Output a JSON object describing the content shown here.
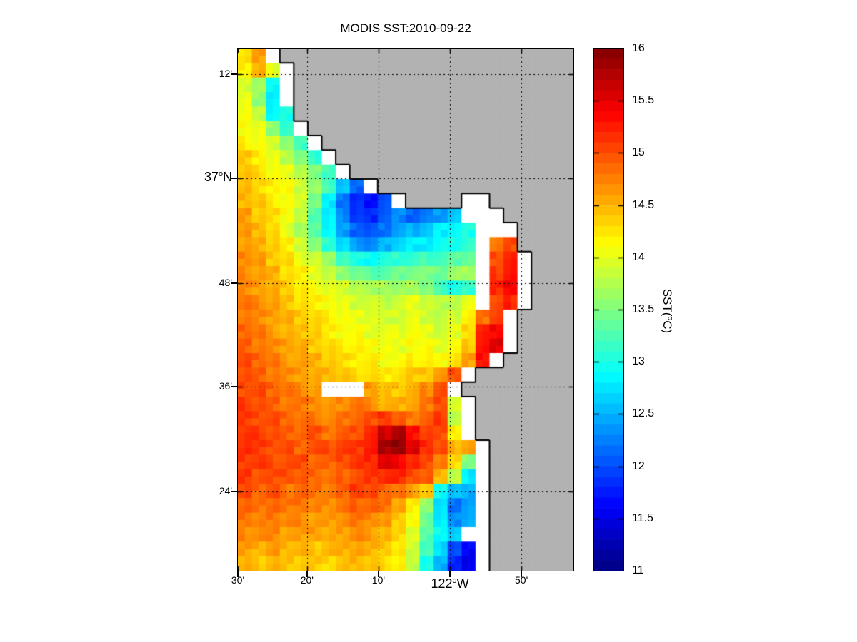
{
  "title": "MODIS SST:2010-09-22",
  "chart_data": {
    "type": "heatmap",
    "title": "MODIS SST:2010-09-22",
    "x_axis": {
      "ticks": [
        {
          "t": "30'",
          "f": 0.0
        },
        {
          "t": "20'",
          "f": 0.206
        },
        {
          "t": "10'",
          "f": 0.419
        },
        {
          "t": "122°W",
          "f": 0.632,
          "big": true
        },
        {
          "t": "50'",
          "f": 0.845
        }
      ]
    },
    "y_axis": {
      "ticks": [
        {
          "t": "12'",
          "f": 0.049
        },
        {
          "t": "37°N",
          "f": 0.249,
          "big": true
        },
        {
          "t": "48'",
          "f": 0.449
        },
        {
          "t": "36'",
          "f": 0.648
        },
        {
          "t": "24'",
          "f": 0.848
        }
      ]
    },
    "colorbar": {
      "label": "SST(°C)",
      "min": 11,
      "max": 16,
      "bands": 50,
      "colormap": "jet",
      "ticks": [
        "16",
        "15.5",
        "15",
        "14.5",
        "14",
        "13.5",
        "13",
        "12.5",
        "12",
        "11.5",
        "11"
      ]
    },
    "colors": {
      "land": "#b2b2b2",
      "nodata": "#ffffff",
      "frame": "#000000",
      "background": "#ffffff",
      "gridline": "#000000",
      "coastline": "#000000"
    },
    "grid_on": true,
    "grid": {
      "cols": 24,
      "rows": 36,
      "land_value": -1,
      "nodata_value": 0,
      "units": "degC",
      "values": [
        [
          14.3,
          14.6,
          0,
          -1,
          -1,
          -1,
          -1,
          -1,
          -1,
          -1,
          -1,
          -1,
          -1,
          -1,
          -1,
          -1,
          -1,
          -1,
          -1,
          -1,
          -1,
          -1,
          -1,
          -1
        ],
        [
          14.2,
          14.5,
          14.0,
          0,
          -1,
          -1,
          -1,
          -1,
          -1,
          -1,
          -1,
          -1,
          -1,
          -1,
          -1,
          -1,
          -1,
          -1,
          -1,
          -1,
          -1,
          -1,
          -1,
          -1
        ],
        [
          13.9,
          13.7,
          12.9,
          0,
          -1,
          -1,
          -1,
          -1,
          -1,
          -1,
          -1,
          -1,
          -1,
          -1,
          -1,
          -1,
          -1,
          -1,
          -1,
          -1,
          -1,
          -1,
          -1,
          -1
        ],
        [
          14.0,
          13.6,
          12.8,
          0,
          -1,
          -1,
          -1,
          -1,
          -1,
          -1,
          -1,
          -1,
          -1,
          -1,
          -1,
          -1,
          -1,
          -1,
          -1,
          -1,
          -1,
          -1,
          -1,
          -1
        ],
        [
          14.1,
          13.8,
          12.9,
          13.0,
          -1,
          -1,
          -1,
          -1,
          -1,
          -1,
          -1,
          -1,
          -1,
          -1,
          -1,
          -1,
          -1,
          -1,
          -1,
          -1,
          -1,
          -1,
          -1,
          -1
        ],
        [
          14.1,
          14.0,
          13.6,
          13.1,
          0,
          -1,
          -1,
          -1,
          -1,
          -1,
          -1,
          -1,
          -1,
          -1,
          -1,
          -1,
          -1,
          -1,
          -1,
          -1,
          -1,
          -1,
          -1,
          -1
        ],
        [
          14.2,
          14.1,
          13.9,
          13.6,
          13.2,
          0,
          -1,
          -1,
          -1,
          -1,
          -1,
          -1,
          -1,
          -1,
          -1,
          -1,
          -1,
          -1,
          -1,
          -1,
          -1,
          -1,
          -1,
          -1
        ],
        [
          14.4,
          14.2,
          14.0,
          13.8,
          13.5,
          13.1,
          0,
          -1,
          -1,
          -1,
          -1,
          -1,
          -1,
          -1,
          -1,
          -1,
          -1,
          -1,
          -1,
          -1,
          -1,
          -1,
          -1,
          -1
        ],
        [
          14.4,
          14.3,
          14.1,
          14.0,
          13.8,
          13.5,
          13.2,
          0,
          -1,
          -1,
          -1,
          -1,
          -1,
          -1,
          -1,
          -1,
          -1,
          -1,
          -1,
          -1,
          -1,
          -1,
          -1,
          -1
        ],
        [
          14.5,
          14.3,
          14.2,
          14.1,
          13.9,
          13.6,
          13.2,
          12.6,
          12.1,
          0,
          -1,
          -1,
          -1,
          -1,
          -1,
          -1,
          -1,
          -1,
          -1,
          -1,
          -1,
          -1,
          -1,
          -1
        ],
        [
          14.5,
          14.4,
          14.2,
          14.1,
          13.9,
          13.5,
          12.8,
          12.2,
          11.8,
          11.7,
          12.0,
          0,
          -1,
          -1,
          -1,
          -1,
          0,
          0,
          -1,
          -1,
          -1,
          -1,
          -1,
          -1
        ],
        [
          14.6,
          14.4,
          14.3,
          14.1,
          13.8,
          13.3,
          12.8,
          12.3,
          11.9,
          11.8,
          12.1,
          12.3,
          12.1,
          12.2,
          12.4,
          12.6,
          0,
          0,
          0,
          -1,
          -1,
          -1,
          -1,
          -1
        ],
        [
          14.6,
          14.5,
          14.3,
          14.0,
          13.7,
          13.3,
          12.9,
          12.4,
          12.1,
          12.0,
          12.2,
          12.4,
          12.5,
          12.6,
          12.8,
          12.9,
          13.0,
          0,
          0,
          0,
          -1,
          -1,
          -1,
          -1
        ],
        [
          14.6,
          14.5,
          14.4,
          14.2,
          13.9,
          13.5,
          13.1,
          12.7,
          12.4,
          12.3,
          12.5,
          12.7,
          12.8,
          12.8,
          12.9,
          13.0,
          13.1,
          0,
          14.8,
          15.0,
          -1,
          -1,
          -1,
          -1
        ],
        [
          14.7,
          14.6,
          14.4,
          14.3,
          14.0,
          13.9,
          13.6,
          13.2,
          13.0,
          12.9,
          13.0,
          13.1,
          13.1,
          13.2,
          13.2,
          13.3,
          13.4,
          0,
          15.0,
          15.2,
          0,
          -1,
          -1,
          -1
        ],
        [
          14.7,
          14.6,
          14.5,
          14.3,
          14.2,
          14.0,
          13.8,
          13.6,
          13.4,
          13.3,
          13.3,
          13.4,
          13.5,
          13.5,
          13.4,
          13.6,
          13.7,
          0,
          15.1,
          15.3,
          0,
          -1,
          -1,
          -1
        ],
        [
          14.7,
          14.6,
          14.5,
          14.4,
          14.2,
          14.1,
          14.0,
          13.9,
          13.8,
          13.7,
          13.7,
          13.6,
          13.7,
          13.5,
          13.2,
          13.0,
          13.1,
          0,
          15.2,
          15.4,
          0,
          -1,
          -1,
          -1
        ],
        [
          14.8,
          14.7,
          14.6,
          14.4,
          14.3,
          14.2,
          14.1,
          14.0,
          13.9,
          13.9,
          13.8,
          13.9,
          14.0,
          13.9,
          13.8,
          13.8,
          14.0,
          0,
          15.0,
          15.2,
          0,
          -1,
          -1,
          -1
        ],
        [
          14.8,
          14.7,
          14.6,
          14.5,
          14.4,
          14.3,
          14.2,
          14.1,
          14.0,
          14.0,
          13.9,
          13.9,
          14.0,
          13.9,
          13.8,
          13.9,
          14.2,
          14.8,
          15.1,
          0,
          -1,
          -1,
          -1,
          -1
        ],
        [
          14.9,
          14.8,
          14.6,
          14.5,
          14.4,
          14.4,
          14.2,
          14.1,
          14.1,
          14.0,
          14.0,
          14.0,
          14.1,
          14.0,
          13.9,
          14.0,
          14.3,
          15.2,
          15.4,
          0,
          -1,
          -1,
          -1,
          -1
        ],
        [
          14.9,
          14.8,
          14.7,
          14.6,
          14.5,
          14.4,
          14.3,
          14.2,
          14.2,
          14.1,
          14.1,
          14.0,
          14.1,
          14.1,
          14.0,
          14.1,
          14.4,
          15.3,
          15.5,
          0,
          -1,
          -1,
          -1,
          -1
        ],
        [
          15.0,
          14.9,
          14.8,
          14.6,
          14.6,
          14.5,
          14.4,
          14.3,
          14.2,
          14.2,
          14.1,
          14.1,
          14.2,
          14.2,
          14.1,
          14.3,
          14.6,
          15.3,
          0,
          -1,
          -1,
          -1,
          -1,
          -1
        ],
        [
          15.0,
          14.9,
          14.8,
          14.7,
          14.6,
          14.5,
          14.5,
          14.4,
          14.3,
          14.3,
          14.2,
          14.3,
          14.4,
          14.4,
          14.6,
          15.0,
          0,
          -1,
          -1,
          -1,
          -1,
          -1,
          -1,
          -1
        ],
        [
          15.0,
          15.0,
          14.9,
          14.8,
          14.7,
          14.6,
          0,
          0,
          0,
          14.6,
          14.4,
          14.4,
          14.5,
          14.7,
          15.0,
          0,
          -1,
          -1,
          -1,
          -1,
          -1,
          -1,
          -1,
          -1
        ],
        [
          15.1,
          15.0,
          14.9,
          14.8,
          14.8,
          14.7,
          14.6,
          14.7,
          14.8,
          14.7,
          14.5,
          14.5,
          14.6,
          14.8,
          15.0,
          13.9,
          0,
          -1,
          -1,
          -1,
          -1,
          -1,
          -1,
          -1
        ],
        [
          15.1,
          15.0,
          15.0,
          14.9,
          14.8,
          14.8,
          14.7,
          14.8,
          14.9,
          15.0,
          15.1,
          14.9,
          14.8,
          14.9,
          15.1,
          13.8,
          0,
          -1,
          -1,
          -1,
          -1,
          -1,
          -1,
          -1
        ],
        [
          15.1,
          15.1,
          15.0,
          14.9,
          14.9,
          15.0,
          14.8,
          14.9,
          15.0,
          15.2,
          15.6,
          15.8,
          15.3,
          15.1,
          15.0,
          14.2,
          0,
          -1,
          -1,
          -1,
          -1,
          -1,
          -1,
          -1
        ],
        [
          15.2,
          15.1,
          15.0,
          15.0,
          14.9,
          15.0,
          15.0,
          15.1,
          15.1,
          15.3,
          15.8,
          15.9,
          15.5,
          15.2,
          15.0,
          14.5,
          14.6,
          0,
          -1,
          -1,
          -1,
          -1,
          -1,
          -1
        ],
        [
          15.1,
          15.1,
          15.0,
          15.0,
          15.0,
          14.9,
          14.9,
          15.0,
          15.1,
          15.2,
          15.5,
          15.4,
          15.2,
          15.0,
          14.8,
          14.3,
          13.5,
          0,
          -1,
          -1,
          -1,
          -1,
          -1,
          -1
        ],
        [
          15.1,
          15.0,
          15.0,
          15.0,
          14.9,
          14.9,
          14.8,
          14.9,
          15.0,
          15.1,
          15.2,
          15.2,
          15.0,
          14.9,
          14.5,
          13.8,
          12.8,
          0,
          -1,
          -1,
          -1,
          -1,
          -1,
          -1
        ],
        [
          15.0,
          14.9,
          15.0,
          14.8,
          14.9,
          14.8,
          14.8,
          14.9,
          15.1,
          15.0,
          14.9,
          14.8,
          14.6,
          14.4,
          12.9,
          12.6,
          12.5,
          0,
          -1,
          -1,
          -1,
          -1,
          -1,
          -1
        ],
        [
          14.9,
          14.8,
          14.9,
          14.8,
          14.8,
          14.7,
          14.7,
          14.8,
          14.9,
          14.9,
          14.8,
          14.6,
          14.2,
          13.6,
          12.7,
          12.2,
          12.4,
          0,
          -1,
          -1,
          -1,
          -1,
          -1,
          -1
        ],
        [
          14.8,
          14.7,
          14.8,
          14.7,
          14.7,
          14.6,
          14.6,
          14.7,
          14.8,
          14.7,
          14.6,
          14.4,
          14.1,
          13.4,
          12.8,
          12.3,
          12.5,
          0,
          -1,
          -1,
          -1,
          -1,
          -1,
          -1
        ],
        [
          14.7,
          14.7,
          14.7,
          14.6,
          14.6,
          14.6,
          14.5,
          14.6,
          14.7,
          14.6,
          14.5,
          14.3,
          14.0,
          13.3,
          12.9,
          12.6,
          0,
          0,
          -1,
          -1,
          -1,
          -1,
          -1,
          -1
        ],
        [
          14.6,
          14.5,
          14.6,
          14.5,
          14.5,
          14.4,
          14.5,
          14.5,
          14.6,
          14.5,
          14.4,
          14.2,
          13.9,
          13.2,
          12.7,
          12.0,
          11.6,
          0,
          -1,
          -1,
          -1,
          -1,
          -1,
          -1
        ],
        [
          14.5,
          14.4,
          14.5,
          14.4,
          14.4,
          14.4,
          14.3,
          14.4,
          14.5,
          14.4,
          14.3,
          14.2,
          13.8,
          13.0,
          12.5,
          11.8,
          11.5,
          0,
          -1,
          -1,
          -1,
          -1,
          -1,
          -1
        ]
      ]
    }
  }
}
